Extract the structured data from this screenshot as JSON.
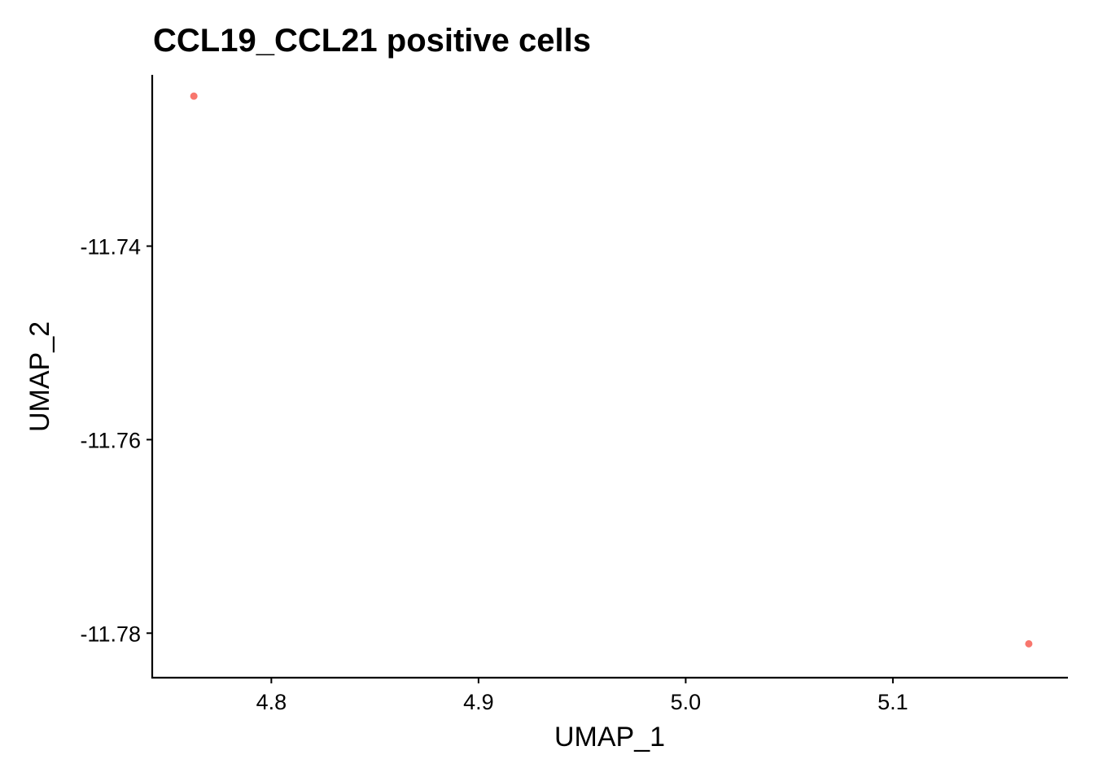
{
  "chart_data": {
    "type": "scatter",
    "title": "CCL19_CCL21 positive cells",
    "xlabel": "UMAP_1",
    "ylabel": "UMAP_2",
    "xlim": [
      4.7425,
      5.1845
    ],
    "ylim": [
      -11.7846,
      -11.7223
    ],
    "xticks": [
      4.8,
      4.9,
      5.0,
      5.1
    ],
    "xtick_labels": [
      "4.8",
      "4.9",
      "5.0",
      "5.1"
    ],
    "yticks": [
      -11.74,
      -11.76,
      -11.78
    ],
    "ytick_labels": [
      "-11.74",
      "-11.76",
      "-11.78"
    ],
    "grid": false,
    "point_color": "#F8766D",
    "points": [
      {
        "x": 4.7626,
        "y": -11.7245
      },
      {
        "x": 5.1656,
        "y": -11.7811
      }
    ]
  }
}
